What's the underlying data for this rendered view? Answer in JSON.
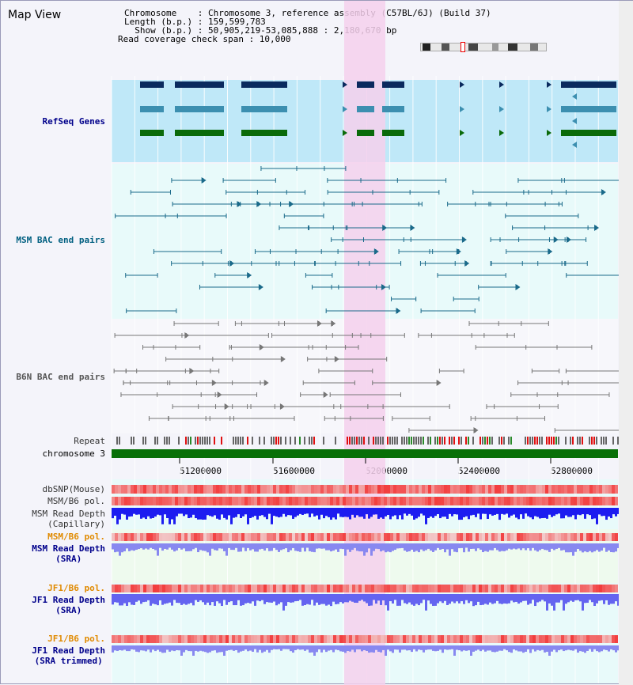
{
  "view": {
    "title": "Map View"
  },
  "info": {
    "chromosome_line": "Chromosome    : Chromosome 3, reference assembly (C57BL/6J) (Build 37)",
    "length_line": "Length (b.p.) : 159,599,783",
    "show_line": "  Show (b.p.) : 50,905,219-53,085,888 : 2,180,670 bp",
    "coverage_line": "Read coverage check span : 10,000"
  },
  "tracks": {
    "refseq": "RefSeq Genes",
    "msm_bac": "MSM BAC end pairs",
    "b6n_bac": "B6N BAC end pairs",
    "repeat": "Repeat",
    "chromosome": "chromosome 3",
    "dbsnp": "dbSNP(Mouse)",
    "msm_b6_pol_1": "MSM/B6 pol.",
    "msm_depth_cap": "MSM Read Depth\n(Capillary)",
    "msm_b6_pol_2": "MSM/B6 pol.",
    "msm_depth_sra": "MSM Read Depth\n(SRA)",
    "jf1_b6_pol_1": "JF1/B6 pol.",
    "jf1_depth_sra": "JF1 Read Depth\n(SRA)",
    "jf1_b6_pol_2": "JF1/B6 pol.",
    "jf1_depth_trim": "JF1 Read Depth\n(SRA trimmed)"
  },
  "axis": {
    "ticks": [
      "51200000",
      "51600000",
      "52000000",
      "52400000",
      "52800000"
    ]
  },
  "colors": {
    "highlight": "#f4d0ec",
    "refseq_bg": "#bfe8f8",
    "track_bg": "#e8fafa",
    "gene_navy": "#0a2a5e",
    "gene_teal": "#3c8fb0",
    "gene_green": "#0a6a0a",
    "msm_pair": "#1a6a8a",
    "b6n_pair": "#777777",
    "chromosome": "#087008",
    "snp_red": "#f26060",
    "depth_blue": "#1c1cf0",
    "depth_light": "#8888f0",
    "label_blue": "#00008b",
    "label_teal": "#005f80",
    "label_orange": "#e08a00"
  }
}
